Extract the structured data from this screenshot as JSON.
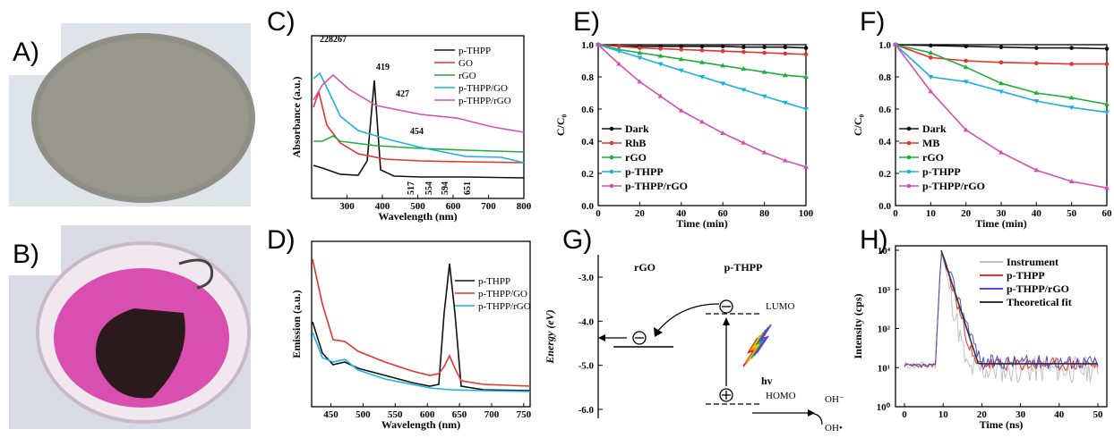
{
  "panels": {
    "A": "A)",
    "B": "B)",
    "C": "C)",
    "D": "D)",
    "E": "E)",
    "F": "F)",
    "G": "G)",
    "H": "H)"
  },
  "photos": {
    "A": "grey-disc-film-photo",
    "B": "beaker-pink-solution-photo"
  },
  "chart_data": [
    {
      "id": "C",
      "type": "line",
      "xlabel": "Wavelength (nm)",
      "ylabel": "Absorbance (a.u.)",
      "xlim": [
        200,
        800
      ],
      "xticks": [
        "300",
        "400",
        "500",
        "600",
        "700",
        "800"
      ],
      "legend": [
        "p-THPP",
        "GO",
        "rGO",
        "p-THPP/GO",
        "p-THPP/rGO"
      ],
      "colors": [
        "#111111",
        "#e8322e",
        "#1fae3a",
        "#18b3e0",
        "#d74fb5"
      ],
      "annotations": [
        "228",
        "267",
        "419",
        "427",
        "454",
        "517",
        "554",
        "594",
        "651"
      ]
    },
    {
      "id": "D",
      "type": "line",
      "xlabel": "Wavelength (nm)",
      "ylabel": "Emission (a.u.)",
      "xlim": [
        420,
        760
      ],
      "xticks": [
        "450",
        "500",
        "550",
        "600",
        "650",
        "700",
        "750"
      ],
      "legend": [
        "p-THPP",
        "p-THPP/GO",
        "p-THPP/rGO"
      ],
      "colors": [
        "#111111",
        "#e8322e",
        "#18b3e0"
      ]
    },
    {
      "id": "E",
      "type": "line",
      "xlabel": "Time (min)",
      "ylabel": "C/C₀",
      "ylim": [
        0,
        1.0
      ],
      "yticks": [
        "0.0",
        "0.2",
        "0.4",
        "0.6",
        "0.8",
        "1.0"
      ],
      "xticks": [
        "0",
        "20",
        "40",
        "60",
        "80",
        "100"
      ],
      "x": [
        0,
        10,
        20,
        30,
        40,
        50,
        60,
        70,
        80,
        90,
        100
      ],
      "series": [
        {
          "name": "Dark",
          "color": "#111111",
          "values": [
            1.0,
            0.99,
            0.99,
            0.99,
            0.99,
            0.99,
            0.99,
            0.985,
            0.985,
            0.985,
            0.98
          ]
        },
        {
          "name": "RhB",
          "color": "#e8322e",
          "values": [
            1.0,
            0.99,
            0.98,
            0.975,
            0.97,
            0.965,
            0.96,
            0.955,
            0.95,
            0.945,
            0.94
          ]
        },
        {
          "name": "rGO",
          "color": "#1fae3a",
          "values": [
            1.0,
            0.97,
            0.95,
            0.93,
            0.91,
            0.89,
            0.87,
            0.85,
            0.83,
            0.81,
            0.8
          ]
        },
        {
          "name": "p-THPP",
          "color": "#18b3e0",
          "values": [
            1.0,
            0.96,
            0.92,
            0.88,
            0.84,
            0.8,
            0.76,
            0.72,
            0.68,
            0.64,
            0.6
          ]
        },
        {
          "name": "p-THPP/rGO",
          "color": "#d74fb5",
          "values": [
            1.0,
            0.88,
            0.77,
            0.68,
            0.59,
            0.52,
            0.45,
            0.39,
            0.33,
            0.28,
            0.24
          ]
        }
      ]
    },
    {
      "id": "F",
      "type": "line",
      "xlabel": "Time (min)",
      "ylabel": "C/C₀",
      "ylim": [
        0,
        1.0
      ],
      "yticks": [
        "0.0",
        "0.2",
        "0.4",
        "0.6",
        "0.8",
        "1.0"
      ],
      "xticks": [
        "0",
        "10",
        "20",
        "30",
        "40",
        "50",
        "60"
      ],
      "x": [
        0,
        10,
        20,
        30,
        40,
        50,
        60
      ],
      "series": [
        {
          "name": "Dark",
          "color": "#111111",
          "values": [
            1.0,
            0.995,
            0.99,
            0.985,
            0.98,
            0.98,
            0.975
          ]
        },
        {
          "name": "MB",
          "color": "#e8322e",
          "values": [
            1.0,
            0.92,
            0.9,
            0.89,
            0.885,
            0.88,
            0.88
          ]
        },
        {
          "name": "rGO",
          "color": "#1fae3a",
          "values": [
            1.0,
            0.95,
            0.86,
            0.76,
            0.7,
            0.67,
            0.63
          ]
        },
        {
          "name": "p-THPP",
          "color": "#18b3e0",
          "values": [
            1.0,
            0.8,
            0.77,
            0.71,
            0.65,
            0.61,
            0.58
          ]
        },
        {
          "name": "p-THPP/rGO",
          "color": "#d74fb5",
          "values": [
            1.0,
            0.71,
            0.47,
            0.33,
            0.22,
            0.15,
            0.11
          ]
        }
      ]
    },
    {
      "id": "G",
      "type": "diagram",
      "ylabel": "Energy (eV)",
      "yticks": [
        "-3.0",
        "-4.0",
        "-5.0",
        "-6.0"
      ],
      "labels": {
        "rgo": "rGO",
        "pthpp": "p-THPP",
        "lumo": "LUMO",
        "homo": "HOMO",
        "hv": "hv",
        "oh": "OH⁻",
        "ohrad": "OH•"
      }
    },
    {
      "id": "H",
      "type": "line",
      "xlabel": "Time (ns)",
      "ylabel": "Intensity (cps)",
      "yticks": [
        "10⁰",
        "10¹",
        "10²",
        "10³",
        "10⁴"
      ],
      "xticks": [
        "0",
        "10",
        "20",
        "30",
        "40",
        "50"
      ],
      "legend": [
        "Instrument",
        "p-THPP",
        "p-THPP/rGO",
        "Theoretical fit"
      ],
      "colors": [
        "#c0c0c0",
        "#e8322e",
        "#4b4bd6",
        "#333333"
      ]
    }
  ]
}
